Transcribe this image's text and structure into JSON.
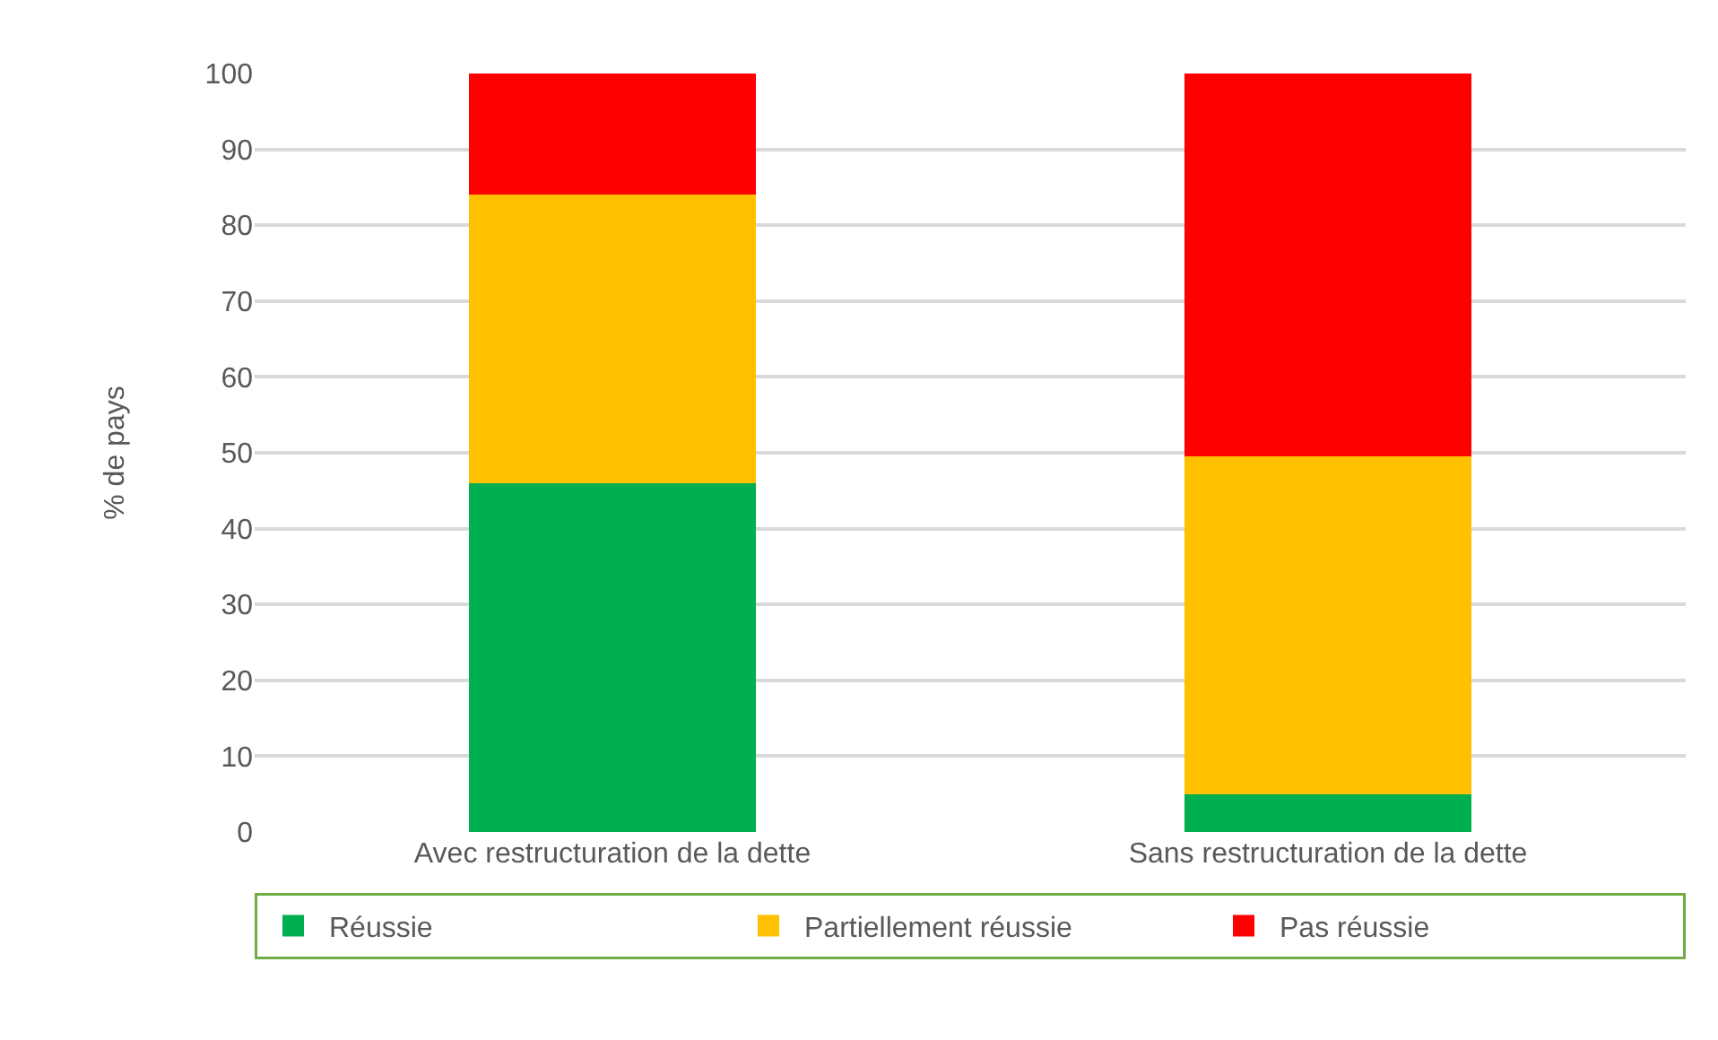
{
  "chart_data": {
    "type": "bar",
    "stacked": true,
    "ylabel": "% de pays",
    "categories": [
      "Avec restructuration de la dette",
      "Sans restructuration de la dette"
    ],
    "series": [
      {
        "name": "Réussie",
        "color": "#00b050",
        "values": [
          46,
          5
        ]
      },
      {
        "name": "Partiellement réussie",
        "color": "#ffc000",
        "values": [
          38,
          44.5
        ]
      },
      {
        "name": "Pas réussie",
        "color": "#ff0000",
        "values": [
          16,
          50.5
        ]
      }
    ],
    "ylim": [
      0,
      100
    ],
    "yticks": [
      0,
      10,
      20,
      30,
      40,
      50,
      60,
      70,
      80,
      90,
      100
    ],
    "grid": "y",
    "legend": "bottom"
  }
}
